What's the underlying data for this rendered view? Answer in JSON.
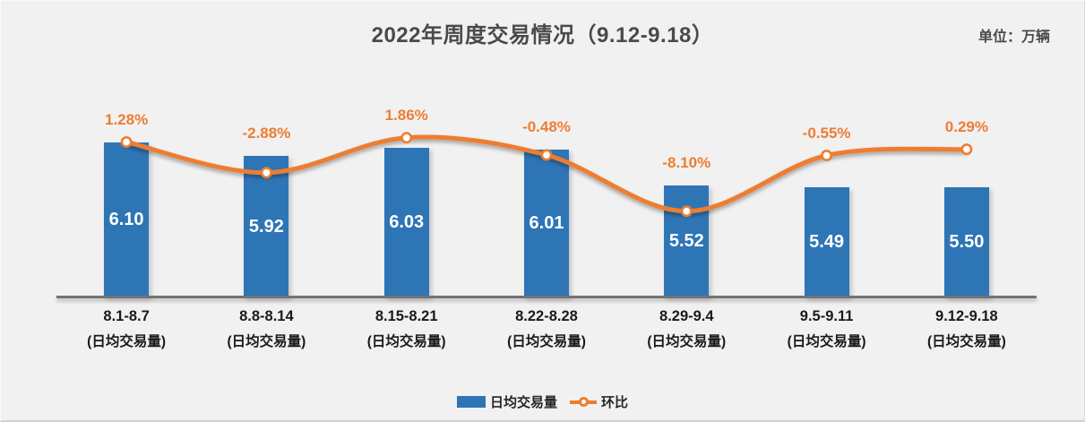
{
  "header": {
    "title": "2022年周度交易情况（9.12-9.18）",
    "unit_label": "单位：万辆"
  },
  "legend": {
    "position": "bottom",
    "items": [
      {
        "label": "日均交易量",
        "marker": "bar-swatch",
        "color": "#2e75b6"
      },
      {
        "label": "环比",
        "marker": "line-swatch",
        "color": "#ed7d31"
      }
    ]
  },
  "chart_data": {
    "type": "combo-bar-line",
    "title": "2022年周度交易情况（9.12-9.18）",
    "unit": "万辆",
    "categories": [
      "8.1-8.7",
      "8.8-8.14",
      "8.15-8.21",
      "8.22-8.28",
      "8.29-9.4",
      "9.5-9.11",
      "9.12-9.18"
    ],
    "category_sublabel": "(日均交易量)",
    "series": [
      {
        "name": "日均交易量",
        "type": "bar",
        "color": "#2e75b6",
        "values": [
          6.1,
          5.92,
          6.03,
          6.01,
          5.52,
          5.49,
          5.5
        ],
        "value_labels": [
          "6.10",
          "5.92",
          "6.03",
          "6.01",
          "5.52",
          "5.49",
          "5.50"
        ]
      },
      {
        "name": "环比",
        "type": "line",
        "color": "#ed7d31",
        "values": [
          1.28,
          -2.88,
          1.86,
          -0.48,
          -8.1,
          -0.55,
          0.29
        ],
        "value_labels": [
          "1.28%",
          "-2.88%",
          "1.86%",
          "-0.48%",
          "-8.10%",
          "-0.55%",
          "0.29%"
        ]
      }
    ],
    "bar_ylim": [
      4.0,
      6.6
    ],
    "line_ylim_pct": [
      -10.5,
      2.5
    ],
    "grid": false,
    "legend_position": "bottom",
    "value_labels_shown": true
  },
  "colors": {
    "background": "#f1f1f1",
    "bar": "#2e75b6",
    "line": "#ed7d31",
    "title": "#4a4a4a",
    "axis_line": "#737373",
    "tick_label": "#1a1a1a",
    "bar_value_label": "#ffffff",
    "pct_label": "#ed7d31"
  }
}
